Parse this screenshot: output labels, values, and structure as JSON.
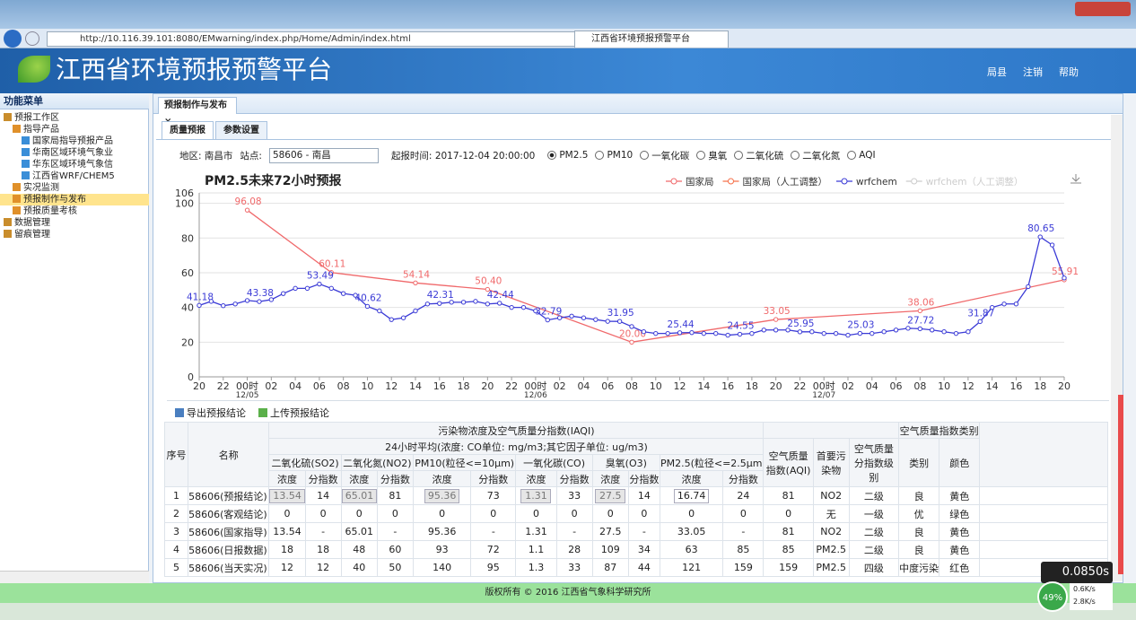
{
  "browser": {
    "url": "http://10.116.39.101:8080/EMwarning/index.php/Home/Admin/index.html",
    "tab": "江西省环境预报预警平台"
  },
  "header": {
    "title": "江西省环境预报预警平台",
    "links": [
      "局县",
      "注销",
      "帮助"
    ]
  },
  "sidebar": {
    "title": "功能菜单",
    "items": [
      {
        "label": "预报工作区",
        "children": [
          {
            "label": "指导产品",
            "children": [
              {
                "label": "国家局指导预报产品"
              },
              {
                "label": "华南区域环境气象业"
              },
              {
                "label": "华东区域环境气象信"
              },
              {
                "label": "江西省WRF/CHEM5"
              }
            ]
          },
          {
            "label": "实况监测"
          },
          {
            "label": "预报制作与发布",
            "selected": true
          },
          {
            "label": "预报质量考核"
          }
        ]
      },
      {
        "label": "数据管理"
      },
      {
        "label": "留痕管理"
      }
    ]
  },
  "tabs": [
    "预报制作与发布"
  ],
  "subtabs": [
    "质量预报",
    "参数设置"
  ],
  "filter": {
    "region": "地区: 南昌市",
    "station_label": "站点:",
    "station": "58606 - 南昌",
    "start_time": "起报时间: 2017-12-04 20:00:00",
    "options": [
      "PM2.5",
      "PM10",
      "一氧化碳",
      "臭氧",
      "二氧化硫",
      "二氧化氮",
      "AQI"
    ],
    "selected": 0
  },
  "chart_data": {
    "type": "line",
    "title": "PM2.5未来72小时预报",
    "grid": true,
    "xlim": [
      0,
      72
    ],
    "ylim": [
      0,
      106
    ],
    "yticks": [
      0,
      20,
      40,
      60,
      80,
      100,
      106
    ],
    "xticks": [
      {
        "value": 0,
        "label": "20"
      },
      {
        "value": 2,
        "label": "22"
      },
      {
        "value": 4,
        "label": "00时\n12/05"
      },
      {
        "value": 6,
        "label": "02"
      },
      {
        "value": 8,
        "label": "04"
      },
      {
        "value": 10,
        "label": "06"
      },
      {
        "value": 12,
        "label": "08"
      },
      {
        "value": 14,
        "label": "10"
      },
      {
        "value": 16,
        "label": "12"
      },
      {
        "value": 18,
        "label": "14"
      },
      {
        "value": 20,
        "label": "16"
      },
      {
        "value": 22,
        "label": "18"
      },
      {
        "value": 24,
        "label": "20"
      },
      {
        "value": 26,
        "label": "22"
      },
      {
        "value": 28,
        "label": "00时\n12/06"
      },
      {
        "value": 30,
        "label": "02"
      },
      {
        "value": 32,
        "label": "04"
      },
      {
        "value": 34,
        "label": "06"
      },
      {
        "value": 36,
        "label": "08"
      },
      {
        "value": 38,
        "label": "10"
      },
      {
        "value": 40,
        "label": "12"
      },
      {
        "value": 42,
        "label": "14"
      },
      {
        "value": 44,
        "label": "16"
      },
      {
        "value": 46,
        "label": "18"
      },
      {
        "value": 48,
        "label": "20"
      },
      {
        "value": 50,
        "label": "22"
      },
      {
        "value": 52,
        "label": "00时\n12/07"
      },
      {
        "value": 54,
        "label": "02"
      },
      {
        "value": 56,
        "label": "04"
      },
      {
        "value": 58,
        "label": "06"
      },
      {
        "value": 60,
        "label": "08"
      },
      {
        "value": 62,
        "label": "10"
      },
      {
        "value": 64,
        "label": "12"
      },
      {
        "value": 66,
        "label": "14"
      },
      {
        "value": 68,
        "label": "16"
      },
      {
        "value": 70,
        "label": "18"
      },
      {
        "value": 72,
        "label": "20"
      }
    ],
    "series": [
      {
        "name": "国家局",
        "color": "#f0696b",
        "x": [
          4,
          11,
          18,
          24,
          36,
          48,
          60,
          72
        ],
        "values": [
          96.08,
          60.11,
          54.14,
          50.4,
          20.0,
          33.05,
          38.06,
          55.91
        ],
        "value_labels": [
          "96.08",
          "60.11",
          "54.14",
          "50.40",
          "20.00",
          "33.05",
          "38.06",
          "55.91"
        ]
      },
      {
        "name": "国家局（人工调整）",
        "color": "#f5704a",
        "x": [],
        "values": []
      },
      {
        "name": "wrfchem",
        "color": "#3b3bd6",
        "x": [
          0,
          1,
          2,
          3,
          4,
          5,
          6,
          7,
          8,
          9,
          10,
          11,
          12,
          13,
          14,
          15,
          16,
          17,
          18,
          19,
          20,
          21,
          22,
          23,
          24,
          25,
          26,
          27,
          28,
          29,
          30,
          31,
          32,
          33,
          34,
          35,
          36,
          37,
          38,
          39,
          40,
          41,
          42,
          43,
          44,
          45,
          46,
          47,
          48,
          49,
          50,
          51,
          52,
          53,
          54,
          55,
          56,
          57,
          58,
          59,
          60,
          61,
          62,
          63,
          64,
          65,
          66,
          67,
          68,
          69,
          70,
          71,
          72
        ],
        "values": [
          41.18,
          43.5,
          41,
          42,
          44,
          43.38,
          44.5,
          48,
          51,
          51,
          53.49,
          51,
          48,
          47,
          40.62,
          38,
          33,
          34,
          38,
          42,
          42.31,
          43,
          43,
          43.5,
          42,
          42.44,
          40,
          40,
          38,
          32.79,
          34,
          35,
          34,
          33,
          32,
          31.95,
          29,
          26,
          25,
          25,
          25.44,
          25.5,
          25,
          25,
          24,
          24.55,
          25,
          27,
          27,
          27,
          25.95,
          26,
          25,
          25,
          24,
          25.03,
          25,
          26,
          27,
          28,
          27.72,
          27,
          26,
          25,
          26,
          31.87,
          40,
          42,
          42,
          52,
          80.65,
          76,
          57
        ],
        "value_labels": [
          "41.18",
          null,
          null,
          null,
          null,
          "43.38",
          null,
          null,
          null,
          null,
          "53.49",
          null,
          null,
          null,
          "40.62",
          null,
          null,
          null,
          null,
          null,
          "42.31",
          null,
          null,
          null,
          null,
          "42.44",
          null,
          null,
          null,
          "32.79",
          null,
          null,
          null,
          null,
          null,
          "31.95",
          null,
          null,
          null,
          null,
          "25.44",
          null,
          null,
          null,
          null,
          "24.55",
          null,
          null,
          null,
          null,
          "25.95",
          null,
          null,
          null,
          null,
          "25.03",
          null,
          null,
          null,
          null,
          "27.72",
          null,
          null,
          null,
          null,
          "31.87",
          null,
          null,
          null,
          null,
          "80.65",
          null,
          null
        ]
      },
      {
        "name": "wrfchem（人工调整）",
        "color": "#cccccc",
        "x": [],
        "values": [],
        "hidden": true
      }
    ]
  },
  "toolbar": [
    "导出预报结论",
    "上传预报结论"
  ],
  "table": {
    "index": "序号",
    "name": "名称",
    "group": "污染物浓度及空气质量分指数(IAQI)",
    "unit_note": "24小时平均(浓度: CO单位: mg/m3;其它因子单位: ug/m3)",
    "pollutants": [
      "二氧化硫(SO2)",
      "二氧化氮(NO2)",
      "PM10(粒径<=10μm)",
      "一氧化碳(CO)",
      "臭氧(O3)",
      "PM2.5(粒径<=2.5μm)"
    ],
    "sub": [
      "浓度",
      "分指数"
    ],
    "aqi": "空气质量指数(AQI)",
    "primary": "首要污染物",
    "level": "空气质量分指数级别",
    "category_group": "空气质量指数类别",
    "category": "类别",
    "color": "颜色",
    "rows": [
      [
        1,
        "58606(预报结论)",
        13.54,
        14,
        65.01,
        81,
        95.36,
        73,
        1.31,
        33,
        27.5,
        14,
        16.74,
        24,
        81,
        "NO2",
        "二级",
        "良",
        "黄色"
      ],
      [
        2,
        "58606(客观结论)",
        0,
        0,
        0,
        0,
        0,
        0,
        0,
        0,
        0,
        0,
        0,
        0,
        0,
        "无",
        "一级",
        "优",
        "绿色"
      ],
      [
        3,
        "58606(国家指导)",
        13.54,
        "-",
        65.01,
        "-",
        95.36,
        "-",
        1.31,
        "-",
        27.5,
        "-",
        33.05,
        "-",
        81,
        "NO2",
        "二级",
        "良",
        "黄色"
      ],
      [
        4,
        "58606(日报数据)",
        18,
        18,
        48,
        60,
        93,
        72,
        1.1,
        28,
        109,
        34,
        63,
        85,
        85,
        "PM2.5",
        "二级",
        "良",
        "黄色"
      ],
      [
        5,
        "58606(当天实况)",
        12,
        12,
        40,
        50,
        140,
        95,
        1.3,
        33,
        87,
        44,
        121,
        159,
        159,
        "PM2.5",
        "四级",
        "中度污染",
        "红色"
      ]
    ]
  },
  "footer": "版权所有 © 2016 江西省气象科学研究所",
  "status": {
    "time": "0.0850s",
    "percent": "49%",
    "up": "0.6K/s",
    "down": "2.8K/s"
  }
}
